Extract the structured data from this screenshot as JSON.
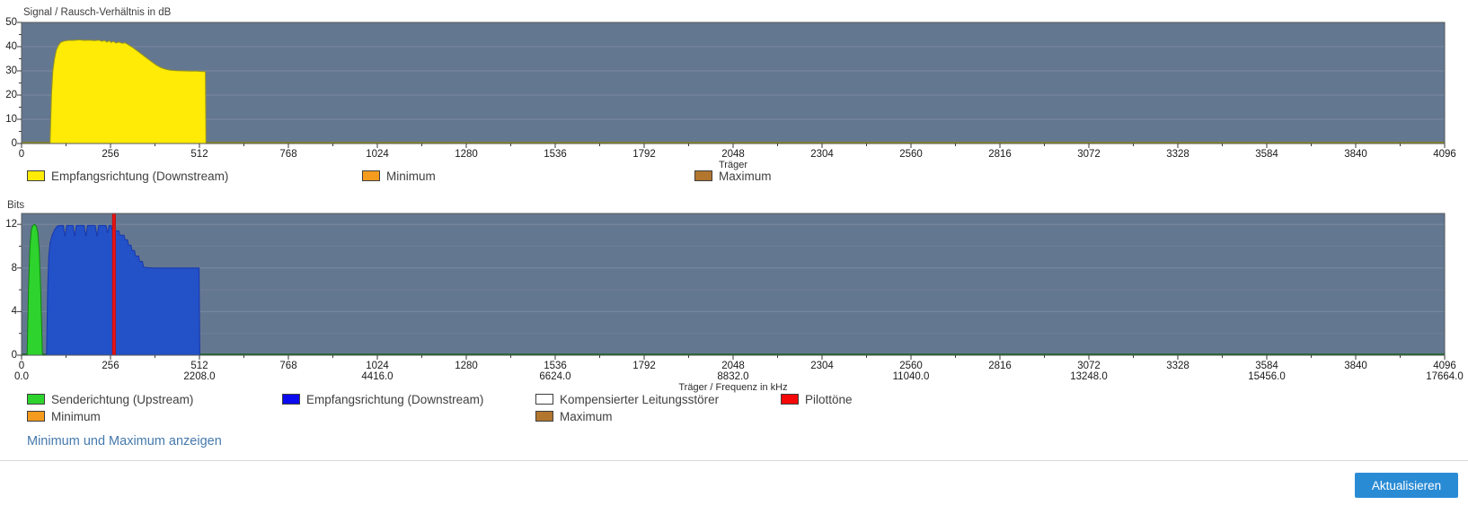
{
  "page": {
    "link": {
      "label": "Minimum und Maximum anzeigen",
      "color": "#4579ad"
    },
    "button": {
      "label": "Aktualisieren",
      "bg": "#2a8bd5",
      "text_color": "#ffffff"
    }
  },
  "chart_data": [
    {
      "type": "area",
      "title": "Signal / Rausch-Verhältnis in dB",
      "xlabel": "Träger",
      "ylabel": "Signal / Rausch-Verhältnis in dB",
      "xlim": [
        0,
        4096
      ],
      "ylim": [
        0,
        50
      ],
      "x_ticks": [
        0,
        256,
        512,
        768,
        1024,
        1280,
        1536,
        1792,
        2048,
        2304,
        2560,
        2816,
        3072,
        3328,
        3584,
        3840,
        4096
      ],
      "x_minor_step": 128,
      "y_ticks": [
        0,
        10,
        20,
        30,
        40,
        50
      ],
      "y_minor": [
        5,
        15,
        25,
        35,
        45
      ],
      "y_grid": [
        10,
        20,
        30,
        40
      ],
      "y_grid_minor": [],
      "grid": true,
      "legend_position": "bottom",
      "plot_bg": "#647790",
      "grid_color": "#7a8aa0",
      "border_color": "#54585e",
      "baseline_color": "#8f8c12",
      "series": [
        {
          "name": "Empfangsrichtung (Downstream)",
          "fill": "#ffeb05",
          "stroke": "#97941c",
          "points": [
            [
              82,
              0
            ],
            [
              86,
              20
            ],
            [
              90,
              30
            ],
            [
              95,
              35
            ],
            [
              100,
              38.5
            ],
            [
              106,
              40.5
            ],
            [
              113,
              41.8
            ],
            [
              122,
              42.3
            ],
            [
              135,
              42.6
            ],
            [
              150,
              42.6
            ],
            [
              165,
              42.8
            ],
            [
              180,
              42.6
            ],
            [
              195,
              42.7
            ],
            [
              210,
              42.5
            ],
            [
              222,
              42.7
            ],
            [
              232,
              42.2
            ],
            [
              238,
              42.6
            ],
            [
              246,
              41.9
            ],
            [
              252,
              42.4
            ],
            [
              258,
              41.7
            ],
            [
              264,
              42.2
            ],
            [
              272,
              41.5
            ],
            [
              280,
              41.9
            ],
            [
              290,
              41.4
            ],
            [
              298,
              41.6
            ],
            [
              306,
              40.9
            ],
            [
              318,
              39.8
            ],
            [
              330,
              38.6
            ],
            [
              342,
              37.3
            ],
            [
              354,
              36.0
            ],
            [
              366,
              34.7
            ],
            [
              378,
              33.4
            ],
            [
              390,
              32.2
            ],
            [
              402,
              31.3
            ],
            [
              414,
              30.7
            ],
            [
              428,
              30.3
            ],
            [
              445,
              30.1
            ],
            [
              465,
              30.0
            ],
            [
              485,
              29.9
            ],
            [
              505,
              29.9
            ],
            [
              520,
              29.7
            ],
            [
              529,
              29.7
            ],
            [
              531,
              0
            ]
          ]
        }
      ],
      "legend": [
        {
          "label": "Empfangsrichtung (Downstream)",
          "color": "#ffeb05"
        },
        {
          "label": "Minimum",
          "color": "#f59b1e"
        },
        {
          "label": "Maximum",
          "color": "#b2762e"
        }
      ]
    },
    {
      "type": "area",
      "title": "Bits",
      "xlabel": "Träger / Frequenz in kHz",
      "ylabel": "Bits",
      "xlim": [
        0,
        4096
      ],
      "ylim": [
        0,
        13
      ],
      "x_ticks": [
        0,
        256,
        512,
        768,
        1024,
        1280,
        1536,
        1792,
        2048,
        2304,
        2560,
        2816,
        3072,
        3328,
        3584,
        3840,
        4096
      ],
      "x_minor_step": 128,
      "x_ticks2": [
        {
          "x": 0,
          "label": "0.0"
        },
        {
          "x": 512,
          "label": "2208.0"
        },
        {
          "x": 1024,
          "label": "4416.0"
        },
        {
          "x": 1536,
          "label": "6624.0"
        },
        {
          "x": 2048,
          "label": "8832.0"
        },
        {
          "x": 2560,
          "label": "11040.0"
        },
        {
          "x": 3072,
          "label": "13248.0"
        },
        {
          "x": 3584,
          "label": "15456.0"
        },
        {
          "x": 4096,
          "label": "17664.0"
        }
      ],
      "y_ticks": [
        0,
        4,
        8,
        12
      ],
      "y_minor": [
        2,
        6,
        10
      ],
      "y_grid": [
        4,
        8,
        12
      ],
      "y_grid_minor": [
        2,
        6,
        10
      ],
      "grid": true,
      "legend_position": "bottom",
      "plot_bg": "#647790",
      "grid_color": "#7a8aa0",
      "border_color": "#54585e",
      "baseline_color": "#14691c",
      "series": [
        {
          "name": "Senderichtung (Upstream)",
          "fill": "#2ed32e",
          "stroke": "#0c830c",
          "points": [
            [
              16,
              0
            ],
            [
              20,
              6
            ],
            [
              24,
              10
            ],
            [
              28,
              11.5
            ],
            [
              32,
              11.9
            ],
            [
              38,
              12
            ],
            [
              43,
              11.8
            ],
            [
              47,
              11.2
            ],
            [
              51,
              9.5
            ],
            [
              55,
              6
            ],
            [
              58,
              2.5
            ],
            [
              60,
              0
            ]
          ]
        },
        {
          "name": "Empfangsrichtung (Downstream)",
          "fill": "#2351c8",
          "stroke": "#1737ad",
          "points": [
            [
              72,
              0
            ],
            [
              75,
              6
            ],
            [
              78,
              9
            ],
            [
              82,
              10.3
            ],
            [
              88,
              11
            ],
            [
              95,
              11.5
            ],
            [
              103,
              11.85
            ],
            [
              112,
              11.9
            ],
            [
              120,
              11.9
            ],
            [
              125,
              10.9
            ],
            [
              130,
              11.9
            ],
            [
              148,
              11.9
            ],
            [
              153,
              10.9
            ],
            [
              158,
              11.9
            ],
            [
              180,
              11.9
            ],
            [
              185,
              10.9
            ],
            [
              190,
              11.9
            ],
            [
              212,
              11.9
            ],
            [
              217,
              10.9
            ],
            [
              222,
              11.9
            ],
            [
              243,
              11.9
            ],
            [
              247,
              11.2
            ],
            [
              252,
              11.9
            ],
            [
              258,
              11.9
            ],
            [
              262,
              11.4
            ],
            [
              280,
              11.4
            ],
            [
              283,
              11.0
            ],
            [
              295,
              11.0
            ],
            [
              298,
              10.6
            ],
            [
              305,
              10.6
            ],
            [
              308,
              10.1
            ],
            [
              315,
              10.1
            ],
            [
              318,
              9.6
            ],
            [
              325,
              9.6
            ],
            [
              328,
              9.1
            ],
            [
              337,
              9.1
            ],
            [
              340,
              8.6
            ],
            [
              348,
              8.6
            ],
            [
              351,
              8.1
            ],
            [
              360,
              8.05
            ],
            [
              380,
              8
            ],
            [
              505,
              8
            ],
            [
              511,
              8
            ],
            [
              513,
              0
            ]
          ]
        },
        {
          "name": "Pilottöne",
          "fill": "#e81414",
          "stroke": "#c90b0b",
          "points": [
            [
              262,
              0
            ],
            [
              262,
              13
            ],
            [
              270,
              13
            ],
            [
              270,
              0
            ]
          ]
        }
      ],
      "legend": [
        {
          "label": "Senderichtung (Upstream)",
          "color": "#2ed32e"
        },
        {
          "label": "Empfangsrichtung (Downstream)",
          "color": "#0b0bef"
        },
        {
          "label": "Kompensierter Leitungsstörer",
          "color": "#ffffff"
        },
        {
          "label": "Pilottöne",
          "color": "#f40808"
        },
        {
          "label": "Minimum",
          "color": "#f59b1e"
        },
        {
          "label": "Maximum",
          "color": "#b2762e"
        }
      ]
    }
  ]
}
